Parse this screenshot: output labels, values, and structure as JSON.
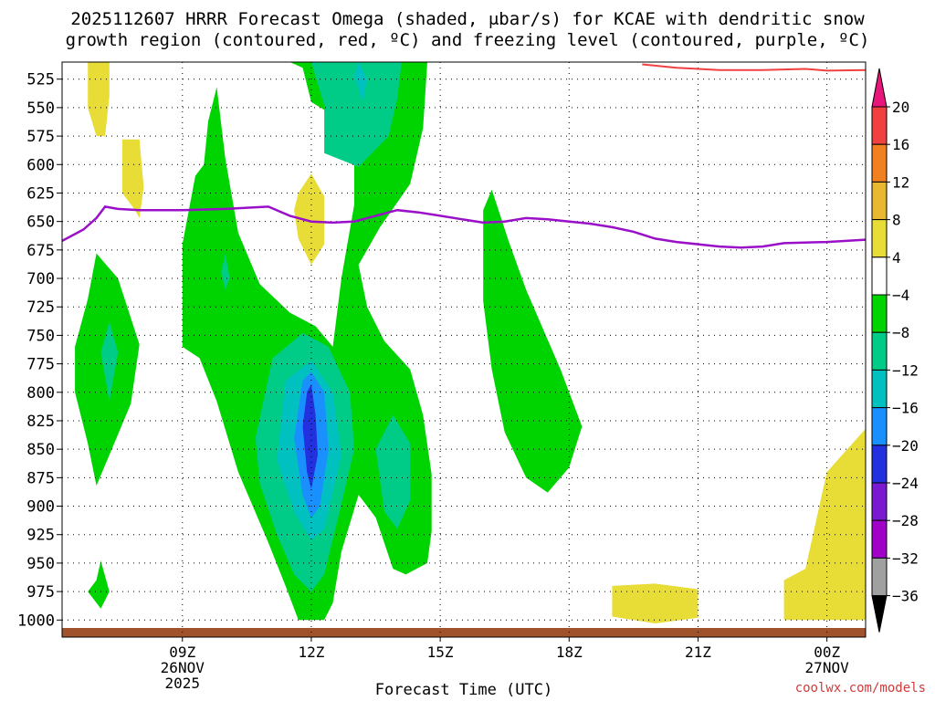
{
  "title_line1": "2025112607 HRRR Forecast Omega (shaded, μbar/s) for KCAE with dendritic snow",
  "title_line2": "growth region (contoured, red, ºC) and freezing level (contoured, purple, ºC)",
  "watermark": "coolwx.com/models",
  "colors": {
    "positive_4_8": "#e8dc36",
    "neutral": "#ffffff",
    "neg_4_8": "#00d400",
    "neg_8_12": "#00cc88",
    "neg_12_16": "#00c0c0",
    "neg_16_20": "#1a90ff",
    "neg_20_24": "#2230e0",
    "neg_24_28": "#7a1ad0",
    "neg_28_32": "#a000c8",
    "neg_32_36": "#a0a0a0",
    "pos_8_12": "#e8b830",
    "pos_12_16": "#f08020",
    "pos_16_20": "#f04040",
    "top_arrow": "#e8157a",
    "bottom_arrow": "#000000",
    "dgz_line": "#f04040",
    "freezing_line": "#9a10c8",
    "ground": "#a0522d"
  },
  "chart_data": {
    "type": "heatmap",
    "title": "2025112607 HRRR Forecast Omega (shaded, μbar/s) for KCAE with dendritic snow growth region (contoured, red, ºC) and freezing level (contoured, purple, ºC)",
    "xlabel": "Forecast Time (UTC)",
    "ylabel": "",
    "x_range_hours": [
      6.2,
      24.9
    ],
    "y_range_hPa": [
      510,
      1015
    ],
    "y_inverted": true,
    "grid": true,
    "y_ticks": [
      525,
      550,
      575,
      600,
      625,
      650,
      675,
      700,
      725,
      750,
      775,
      800,
      825,
      850,
      875,
      900,
      925,
      950,
      975,
      1000
    ],
    "x_ticks": [
      {
        "hour": 9,
        "label": "09Z",
        "sub1": "26NOV",
        "sub2": "2025"
      },
      {
        "hour": 12,
        "label": "12Z",
        "sub1": "",
        "sub2": ""
      },
      {
        "hour": 15,
        "label": "15Z",
        "sub1": "",
        "sub2": ""
      },
      {
        "hour": 18,
        "label": "18Z",
        "sub1": "",
        "sub2": ""
      },
      {
        "hour": 21,
        "label": "21Z",
        "sub1": "",
        "sub2": ""
      },
      {
        "hour": 24,
        "label": "00Z",
        "sub1": "27NOV",
        "sub2": ""
      }
    ],
    "colorbar_levels": [
      "20",
      "16",
      "12",
      "8",
      "4",
      "−4",
      "−8",
      "−12",
      "−16",
      "−20",
      "−24",
      "−28",
      "−32",
      "−36"
    ],
    "dendritic_growth_contour": [
      [
        19.7,
        512
      ],
      [
        20.5,
        515
      ],
      [
        21.5,
        517
      ],
      [
        22.5,
        517
      ],
      [
        23.5,
        516
      ],
      [
        24.0,
        517.5
      ],
      [
        24.9,
        517
      ]
    ],
    "freezing_level_contour": [
      [
        6.2,
        667
      ],
      [
        6.7,
        657
      ],
      [
        7.0,
        647
      ],
      [
        7.2,
        637
      ],
      [
        7.5,
        639
      ],
      [
        8.0,
        640
      ],
      [
        9.0,
        640
      ],
      [
        10.0,
        639
      ],
      [
        11.0,
        637
      ],
      [
        11.5,
        645
      ],
      [
        12.0,
        650
      ],
      [
        12.5,
        651
      ],
      [
        13.0,
        650
      ],
      [
        13.5,
        645
      ],
      [
        14.0,
        640
      ],
      [
        14.5,
        642
      ],
      [
        15.0,
        645
      ],
      [
        15.5,
        648
      ],
      [
        16.0,
        651
      ],
      [
        16.5,
        650
      ],
      [
        17.0,
        647
      ],
      [
        17.5,
        648
      ],
      [
        18.0,
        650
      ],
      [
        18.5,
        652
      ],
      [
        19.0,
        655
      ],
      [
        19.5,
        659
      ],
      [
        20.0,
        665
      ],
      [
        20.5,
        668
      ],
      [
        21.0,
        670
      ],
      [
        21.5,
        672
      ],
      [
        22.0,
        673
      ],
      [
        22.5,
        672
      ],
      [
        23.0,
        669
      ],
      [
        24.0,
        668
      ],
      [
        24.9,
        666
      ]
    ],
    "omega_regions": [
      {
        "level": "4 to 8",
        "points": [
          [
            6.8,
            510
          ],
          [
            7.3,
            510
          ],
          [
            7.3,
            540
          ],
          [
            7.2,
            575
          ],
          [
            7.0,
            575
          ],
          [
            6.8,
            550
          ]
        ]
      },
      {
        "level": "4 to 8",
        "points": [
          [
            7.6,
            578
          ],
          [
            8.0,
            578
          ],
          [
            8.1,
            620
          ],
          [
            8.0,
            647
          ],
          [
            7.9,
            640
          ],
          [
            7.6,
            625
          ]
        ]
      },
      {
        "level": "4 to 8",
        "points": [
          [
            11.7,
            625
          ],
          [
            12.0,
            608
          ],
          [
            12.3,
            628
          ],
          [
            12.3,
            670
          ],
          [
            12.0,
            688
          ],
          [
            11.7,
            665
          ],
          [
            11.6,
            640
          ]
        ]
      },
      {
        "level": "4 to 8",
        "points": [
          [
            19.0,
            970
          ],
          [
            20.0,
            968
          ],
          [
            21.0,
            973
          ],
          [
            21.0,
            998
          ],
          [
            20.0,
            1003
          ],
          [
            19.0,
            997
          ]
        ]
      },
      {
        "level": "4 to 8",
        "points": [
          [
            23.0,
            965
          ],
          [
            23.5,
            955
          ],
          [
            24.0,
            870
          ],
          [
            24.9,
            832
          ],
          [
            24.9,
            1000
          ],
          [
            23.0,
            1000
          ]
        ]
      },
      {
        "level": "-4 to -8",
        "points": [
          [
            6.5,
            760
          ],
          [
            6.8,
            718
          ],
          [
            7.0,
            678
          ],
          [
            7.5,
            700
          ],
          [
            8.0,
            758
          ],
          [
            7.8,
            810
          ],
          [
            7.3,
            855
          ],
          [
            7.0,
            882
          ],
          [
            6.8,
            845
          ],
          [
            6.5,
            800
          ]
        ]
      },
      {
        "level": "-4 to -8",
        "points": [
          [
            6.8,
            975
          ],
          [
            7.0,
            965
          ],
          [
            7.1,
            948
          ],
          [
            7.3,
            975
          ],
          [
            7.1,
            990
          ]
        ]
      },
      {
        "level": "-4 to -8",
        "points": [
          [
            9.0,
            760
          ],
          [
            9.0,
            670
          ],
          [
            9.3,
            610
          ],
          [
            9.5,
            600
          ],
          [
            9.6,
            562
          ],
          [
            9.8,
            532
          ],
          [
            10.0,
            595
          ],
          [
            10.3,
            660
          ],
          [
            10.8,
            705
          ],
          [
            11.5,
            730
          ],
          [
            12.1,
            742
          ],
          [
            12.5,
            760
          ],
          [
            12.7,
            700
          ],
          [
            13.0,
            635
          ],
          [
            13.0,
            600
          ],
          [
            12.3,
            552
          ],
          [
            12.0,
            545
          ],
          [
            11.8,
            515
          ],
          [
            11.5,
            510
          ],
          [
            14.7,
            510
          ],
          [
            14.6,
            568
          ],
          [
            14.3,
            617
          ],
          [
            13.6,
            655
          ],
          [
            13.1,
            688
          ],
          [
            13.3,
            725
          ],
          [
            13.7,
            755
          ],
          [
            14.3,
            780
          ],
          [
            14.6,
            820
          ],
          [
            14.8,
            872
          ],
          [
            14.8,
            922
          ],
          [
            14.7,
            950
          ],
          [
            14.2,
            960
          ],
          [
            13.9,
            955
          ],
          [
            13.5,
            910
          ],
          [
            13.1,
            890
          ],
          [
            12.7,
            940
          ],
          [
            12.5,
            985
          ],
          [
            12.3,
            1000
          ],
          [
            11.7,
            1000
          ],
          [
            11.4,
            970
          ],
          [
            11.0,
            932
          ],
          [
            10.3,
            870
          ],
          [
            9.8,
            808
          ],
          [
            9.4,
            770
          ]
        ]
      },
      {
        "level": "-4 to -8",
        "points": [
          [
            16.0,
            720
          ],
          [
            16.0,
            640
          ],
          [
            16.2,
            622
          ],
          [
            16.6,
            668
          ],
          [
            17.0,
            710
          ],
          [
            17.8,
            780
          ],
          [
            18.3,
            830
          ],
          [
            18.0,
            866
          ],
          [
            17.5,
            888
          ],
          [
            17.0,
            875
          ],
          [
            16.5,
            835
          ],
          [
            16.2,
            780
          ]
        ]
      },
      {
        "level": "-8 to -12",
        "points": [
          [
            12.3,
            590
          ],
          [
            12.3,
            548
          ],
          [
            12.0,
            510
          ],
          [
            14.1,
            510
          ],
          [
            14.0,
            542
          ],
          [
            13.8,
            575
          ],
          [
            13.1,
            602
          ]
        ]
      },
      {
        "level": "-8 to -12",
        "points": [
          [
            7.1,
            765
          ],
          [
            7.3,
            738
          ],
          [
            7.5,
            765
          ],
          [
            7.3,
            808
          ]
        ]
      },
      {
        "level": "-8 to -12",
        "points": [
          [
            9.9,
            695
          ],
          [
            10.0,
            678
          ],
          [
            10.1,
            700
          ],
          [
            10.0,
            710
          ]
        ]
      },
      {
        "level": "-8 to -12",
        "points": [
          [
            10.7,
            840
          ],
          [
            11.1,
            770
          ],
          [
            11.8,
            748
          ],
          [
            12.4,
            760
          ],
          [
            12.9,
            800
          ],
          [
            13.0,
            850
          ],
          [
            12.7,
            898
          ],
          [
            12.3,
            960
          ],
          [
            12.0,
            975
          ],
          [
            11.6,
            960
          ],
          [
            11.2,
            925
          ],
          [
            10.8,
            880
          ]
        ]
      },
      {
        "level": "-8 to -12",
        "points": [
          [
            13.5,
            850
          ],
          [
            13.9,
            820
          ],
          [
            14.3,
            845
          ],
          [
            14.3,
            895
          ],
          [
            14.0,
            920
          ],
          [
            13.7,
            905
          ]
        ]
      },
      {
        "level": "-12 to -16",
        "points": [
          [
            11.2,
            860
          ],
          [
            11.4,
            790
          ],
          [
            12.0,
            772
          ],
          [
            12.5,
            800
          ],
          [
            12.7,
            855
          ],
          [
            12.3,
            920
          ],
          [
            12.0,
            930
          ],
          [
            11.6,
            905
          ]
        ]
      },
      {
        "level": "-12 to -16",
        "points": [
          [
            13.0,
            522
          ],
          [
            13.1,
            510
          ],
          [
            13.3,
            525
          ],
          [
            13.2,
            545
          ]
        ]
      },
      {
        "level": "-16 to -20",
        "points": [
          [
            11.6,
            840
          ],
          [
            11.8,
            790
          ],
          [
            12.0,
            782
          ],
          [
            12.3,
            800
          ],
          [
            12.4,
            850
          ],
          [
            12.2,
            900
          ],
          [
            12.0,
            910
          ],
          [
            11.8,
            890
          ]
        ]
      },
      {
        "level": "-20 to -24",
        "points": [
          [
            11.8,
            830
          ],
          [
            11.9,
            800
          ],
          [
            12.0,
            793
          ],
          [
            12.1,
            820
          ],
          [
            12.15,
            855
          ],
          [
            12.0,
            885
          ],
          [
            11.9,
            870
          ]
        ]
      }
    ]
  }
}
